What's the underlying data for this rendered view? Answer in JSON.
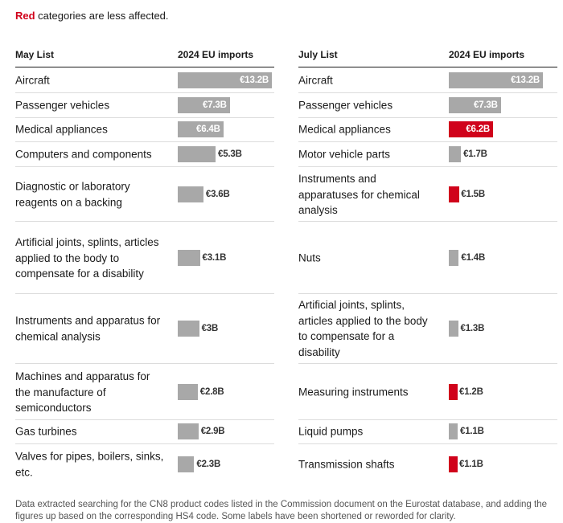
{
  "note": {
    "highlight": "Red",
    "text": " categories are less affected."
  },
  "chart_data": {
    "type": "bar",
    "title": "",
    "unit": "€",
    "value_header": "2024 EU imports",
    "colors": {
      "default": "#a8a8a8",
      "highlight": "#d0021b"
    },
    "panels": [
      {
        "name": "May List",
        "value_header": "2024 EU imports",
        "items": [
          {
            "label": "Aircraft",
            "value": 13.2,
            "display": "€13.2B",
            "highlight": false
          },
          {
            "label": "Passenger vehicles",
            "value": 7.3,
            "display": "€7.3B",
            "highlight": false
          },
          {
            "label": "Medical appliances",
            "value": 6.4,
            "display": "€6.4B",
            "highlight": false
          },
          {
            "label": "Computers and components",
            "value": 5.3,
            "display": "€5.3B",
            "highlight": false
          },
          {
            "label": "Diagnostic or laboratory reagents on a backing",
            "value": 3.6,
            "display": "€3.6B",
            "highlight": false
          },
          {
            "label": "Artificial joints, splints, articles applied to the body to compensate for a disability",
            "value": 3.1,
            "display": "€3.1B",
            "highlight": false
          },
          {
            "label": "Instruments and apparatus for chemical analysis",
            "value": 3.0,
            "display": "€3B",
            "highlight": false
          },
          {
            "label": "Machines and apparatus for the manufacture of semiconductors",
            "value": 2.8,
            "display": "€2.8B",
            "highlight": false
          },
          {
            "label": "Gas turbines",
            "value": 2.9,
            "display": "€2.9B",
            "highlight": false
          },
          {
            "label": "Valves for pipes, boilers, sinks, etc.",
            "value": 2.3,
            "display": "€2.3B",
            "highlight": false
          }
        ]
      },
      {
        "name": "July List",
        "value_header": "2024 EU imports",
        "items": [
          {
            "label": "Aircraft",
            "value": 13.2,
            "display": "€13.2B",
            "highlight": false
          },
          {
            "label": "Passenger vehicles",
            "value": 7.3,
            "display": "€7.3B",
            "highlight": false
          },
          {
            "label": "Medical appliances",
            "value": 6.2,
            "display": "€6.2B",
            "highlight": true
          },
          {
            "label": "Motor vehicle parts",
            "value": 1.7,
            "display": "€1.7B",
            "highlight": false
          },
          {
            "label": "Instruments and apparatuses for chemical analysis",
            "value": 1.5,
            "display": "€1.5B",
            "highlight": true
          },
          {
            "label": "Nuts",
            "value": 1.4,
            "display": "€1.4B",
            "highlight": false
          },
          {
            "label": "Artificial joints, splints, articles applied to the body to compensate for a disability",
            "value": 1.3,
            "display": "€1.3B",
            "highlight": false
          },
          {
            "label": "Measuring instruments",
            "value": 1.2,
            "display": "€1.2B",
            "highlight": true
          },
          {
            "label": "Liquid pumps",
            "value": 1.1,
            "display": "€1.1B",
            "highlight": false
          },
          {
            "label": "Transmission shafts",
            "value": 1.1,
            "display": "€1.1B",
            "highlight": true
          }
        ]
      }
    ]
  },
  "source": "Data extracted searching for the CN8 product codes listed in the Commission document on the Eurostat database, and adding the figures up based on the corresponding HS4 code. Some labels have been shortened or reworded for clarity."
}
